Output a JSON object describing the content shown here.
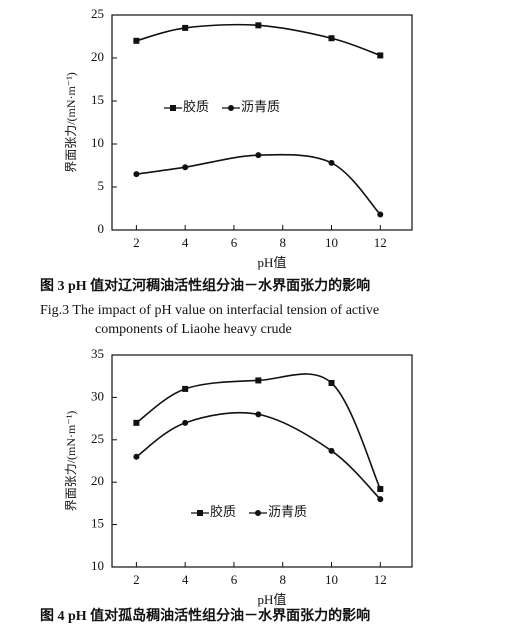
{
  "chart_data": [
    {
      "type": "line",
      "xlabel": "pH值",
      "ylabel": "界面张力/(mN·m⁻¹)",
      "x": [
        2,
        4,
        7,
        10,
        12
      ],
      "series": [
        {
          "name": "胶质",
          "marker": "square",
          "color": "#111111",
          "values": [
            22,
            23.5,
            23.8,
            22.3,
            20.3
          ]
        },
        {
          "name": "沥青质",
          "marker": "circle",
          "color": "#111111",
          "values": [
            6.5,
            7.3,
            8.7,
            7.8,
            1.8
          ]
        }
      ],
      "xlim": [
        1,
        13.3
      ],
      "xticks": [
        2,
        4,
        6,
        8,
        10,
        12
      ],
      "ylim": [
        0,
        25
      ],
      "yticks": [
        0,
        5,
        10,
        15,
        20,
        25
      ],
      "grid": false,
      "caption_cn": "图 3   pH 值对辽河稠油活性组分油－水界面张力的影响",
      "caption_en": [
        "Fig.3    The impact of pH value on interfacial tension of active",
        "components of Liaohe heavy crude"
      ]
    },
    {
      "type": "line",
      "xlabel": "pH值",
      "ylabel": "界面张力/(mN·m⁻¹)",
      "x": [
        2,
        4,
        7,
        10,
        12
      ],
      "series": [
        {
          "name": "胶质",
          "marker": "square",
          "color": "#111111",
          "values": [
            27,
            31,
            32,
            31.7,
            19.2
          ]
        },
        {
          "name": "沥青质",
          "marker": "circle",
          "color": "#111111",
          "values": [
            23,
            27,
            28,
            23.7,
            18
          ]
        }
      ],
      "xlim": [
        1,
        13.3
      ],
      "xticks": [
        2,
        4,
        6,
        8,
        10,
        12
      ],
      "ylim": [
        10,
        35
      ],
      "yticks": [
        10,
        15,
        20,
        25,
        30,
        35
      ],
      "grid": false,
      "caption_cn": "图 4   pH 值对孤岛稠油活性组分油－水界面张力的影响"
    }
  ]
}
